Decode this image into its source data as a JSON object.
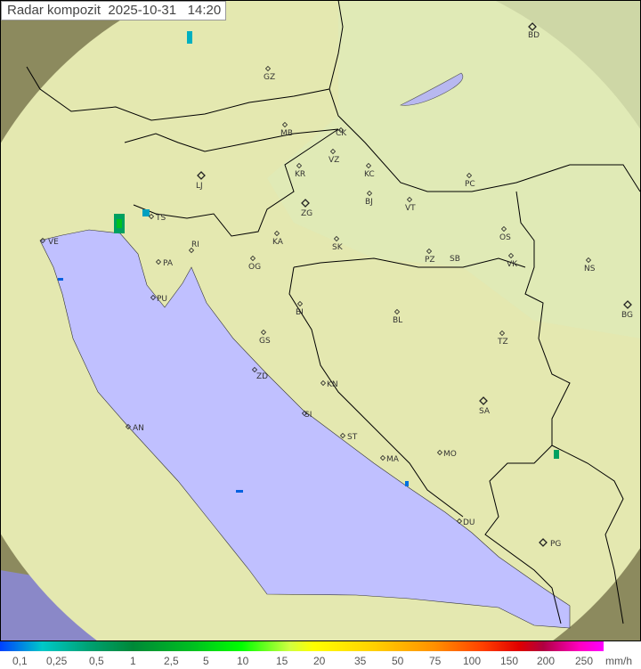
{
  "title": {
    "label": "Radar kompozit",
    "date": "2025-10-31",
    "time": "14:20"
  },
  "colors": {
    "sea": "#c0c0ff",
    "coverage": "#e6eab4",
    "outside": "#8c8a5e",
    "border": "#000000"
  },
  "cities": [
    {
      "code": "GZ"
    },
    {
      "code": "BD"
    },
    {
      "code": "MB"
    },
    {
      "code": "CK"
    },
    {
      "code": "VZ"
    },
    {
      "code": "KR"
    },
    {
      "code": "KC"
    },
    {
      "code": "PC"
    },
    {
      "code": "LJ"
    },
    {
      "code": "TS"
    },
    {
      "code": "VE"
    },
    {
      "code": "RI"
    },
    {
      "code": "KA"
    },
    {
      "code": "SK"
    },
    {
      "code": "ZG"
    },
    {
      "code": "BJ"
    },
    {
      "code": "VT"
    },
    {
      "code": "OS"
    },
    {
      "code": "PA"
    },
    {
      "code": "OG"
    },
    {
      "code": "PZ"
    },
    {
      "code": "SB"
    },
    {
      "code": "VK"
    },
    {
      "code": "NS"
    },
    {
      "code": "PU"
    },
    {
      "code": "BI"
    },
    {
      "code": "BL"
    },
    {
      "code": "BG"
    },
    {
      "code": "GS"
    },
    {
      "code": "TZ"
    },
    {
      "code": "ZD"
    },
    {
      "code": "KN"
    },
    {
      "code": "SA"
    },
    {
      "code": "SI"
    },
    {
      "code": "AN"
    },
    {
      "code": "ST"
    },
    {
      "code": "MA"
    },
    {
      "code": "MO"
    },
    {
      "code": "DU"
    },
    {
      "code": "PG"
    }
  ],
  "legend": {
    "unit": "mm/h",
    "values": [
      "0,1",
      "0,25",
      "0,5",
      "1",
      "2,5",
      "5",
      "10",
      "15",
      "20",
      "35",
      "50",
      "75",
      "100",
      "150",
      "200",
      "250"
    ]
  }
}
